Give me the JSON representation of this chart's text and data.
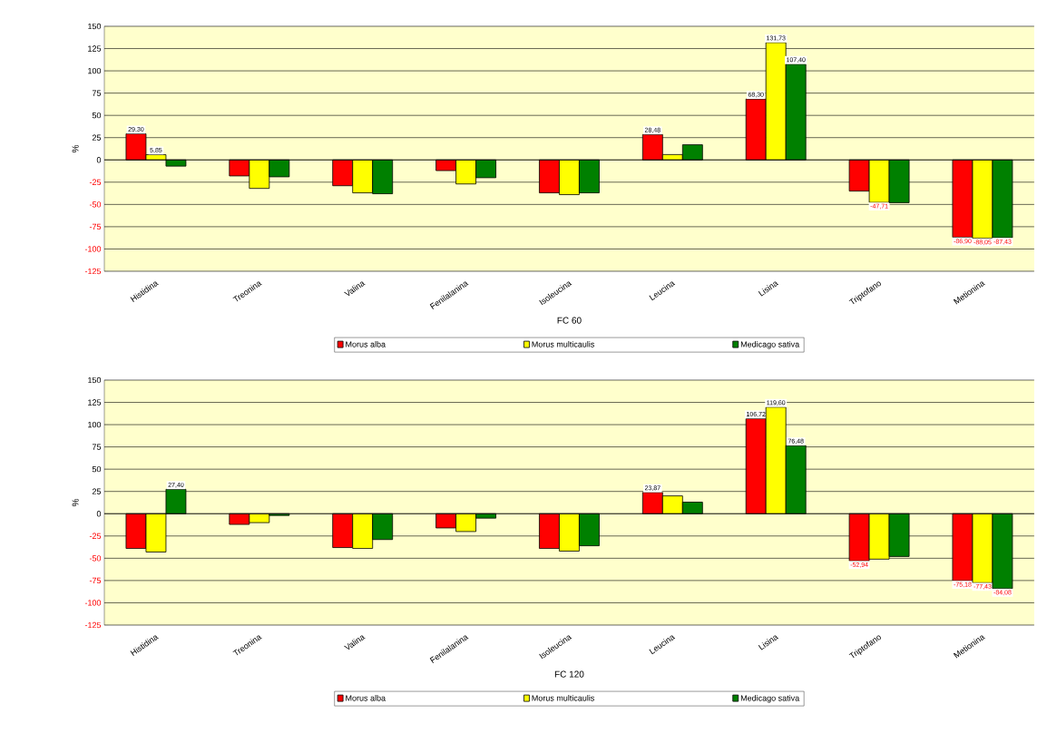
{
  "chart_data": [
    {
      "type": "bar",
      "xlabel": "FC 60",
      "ylabel": "%",
      "categories": [
        "Histidina",
        "Treonina",
        "Valina",
        "Fenilalanina",
        "Isoleucina",
        "Leucina",
        "Lisina",
        "Triptofano",
        "Metionina"
      ],
      "series": [
        {
          "name": "Morus alba",
          "color": "#ff0000",
          "values": [
            29.3,
            -18,
            -29,
            -12,
            -37,
            28.48,
            68.3,
            -35,
            -86.9
          ],
          "value_labels": [
            "29,30",
            null,
            null,
            null,
            null,
            "28,48",
            "68,30",
            null,
            "-86,90"
          ]
        },
        {
          "name": "Morus multicaulis",
          "color": "#ffff00",
          "values": [
            5.85,
            -32,
            -37,
            -27,
            -39,
            6,
            131.73,
            -47.71,
            -88.05
          ],
          "value_labels": [
            "5,85",
            null,
            null,
            null,
            null,
            null,
            "131,73",
            "-47,71",
            "-88,05"
          ]
        },
        {
          "name": "Medicago sativa",
          "color": "#008000",
          "values": [
            -7,
            -19,
            -38,
            -20,
            -37,
            17,
            107.4,
            -48,
            -87.43
          ],
          "value_labels": [
            null,
            null,
            null,
            null,
            null,
            null,
            "107,40",
            null,
            "-87,43"
          ]
        }
      ],
      "ylim": [
        -125,
        150
      ],
      "yticks": [
        -125,
        -100,
        -75,
        -50,
        -25,
        0,
        25,
        50,
        75,
        100,
        125,
        150
      ],
      "grid": "y",
      "legend": "bottom"
    },
    {
      "type": "bar",
      "xlabel": "FC 120",
      "ylabel": "%",
      "categories": [
        "Histidina",
        "Treonina",
        "Valina",
        "Fenilalanina",
        "Isoleucina",
        "Leucina",
        "Lisina",
        "Triptofano",
        "Metionina"
      ],
      "series": [
        {
          "name": "Morus alba",
          "color": "#ff0000",
          "values": [
            -39,
            -12,
            -38,
            -16,
            -39,
            23.87,
            106.72,
            -52.94,
            -75.18
          ],
          "value_labels": [
            null,
            null,
            null,
            null,
            null,
            "23,87",
            "106,72",
            "-52,94",
            "-75,18"
          ]
        },
        {
          "name": "Morus multicaulis",
          "color": "#ffff00",
          "values": [
            -43,
            -10,
            -39,
            -20,
            -42,
            20,
            119.6,
            -51,
            -77.43
          ],
          "value_labels": [
            null,
            null,
            null,
            null,
            null,
            null,
            "119,60",
            null,
            "-77,43"
          ]
        },
        {
          "name": "Medicago sativa",
          "color": "#008000",
          "values": [
            27.4,
            -2,
            -29,
            -5,
            -36,
            13,
            76.48,
            -48,
            -84.08
          ],
          "value_labels": [
            "27,40",
            null,
            null,
            null,
            null,
            null,
            "76,48",
            null,
            "-84,08"
          ]
        }
      ],
      "ylim": [
        -125,
        150
      ],
      "yticks": [
        -125,
        -100,
        -75,
        -50,
        -25,
        0,
        25,
        50,
        75,
        100,
        125,
        150
      ],
      "grid": "y",
      "legend": "bottom"
    }
  ]
}
